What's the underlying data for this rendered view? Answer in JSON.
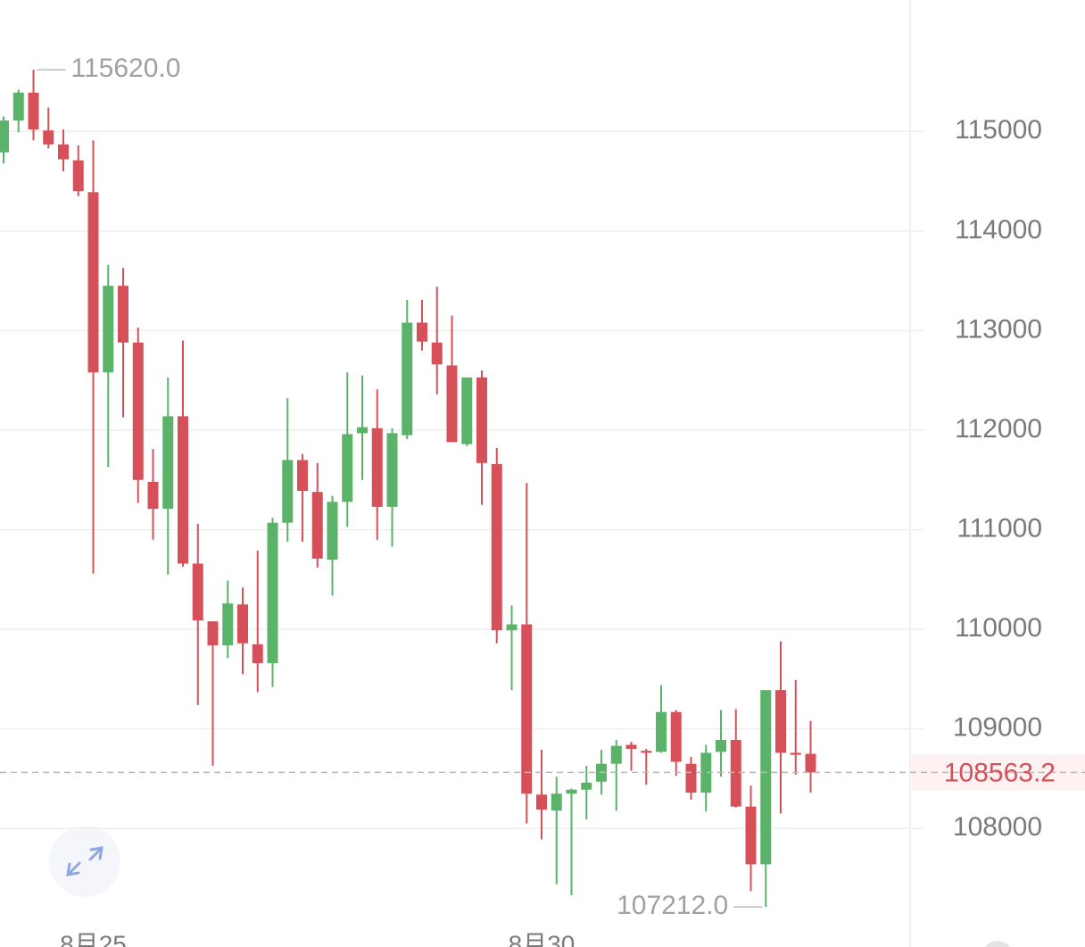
{
  "chart_data": {
    "type": "candlestick",
    "up_color": "#5bb36a",
    "down_color": "#d6505a",
    "categories": [
      null,
      null,
      null,
      null,
      null,
      null,
      "8月25",
      null,
      null,
      null,
      null,
      null,
      null,
      null,
      null,
      null,
      null,
      null,
      null,
      null,
      null,
      null,
      null,
      null,
      null,
      null,
      null,
      null,
      null,
      null,
      null,
      null,
      null,
      null,
      null,
      null,
      "8月30",
      null,
      null,
      null,
      null,
      null,
      null,
      null,
      null,
      null,
      null,
      null,
      null,
      null,
      null,
      null,
      null,
      null,
      null
    ],
    "open": [
      114790,
      115110,
      115390,
      115010,
      114870,
      114710,
      114390,
      112580,
      113450,
      112880,
      111480,
      111210,
      112140,
      110660,
      110080,
      109840,
      110250,
      109850,
      109660,
      111070,
      111700,
      111380,
      110700,
      111280,
      111970,
      112020,
      111230,
      111950,
      113080,
      112880,
      112650,
      111860,
      112530,
      111660,
      109990,
      110050,
      108340,
      108180,
      108350,
      108390,
      108470,
      108650,
      108840,
      108780,
      108770,
      109170,
      108650,
      108360,
      108770,
      108890,
      108220,
      107640,
      109390,
      108760,
      108750
    ],
    "close": [
      115110,
      115390,
      115020,
      114870,
      114720,
      114400,
      112580,
      113450,
      112880,
      111500,
      111210,
      112140,
      110660,
      110090,
      109840,
      110260,
      109860,
      109660,
      111070,
      111700,
      111390,
      110710,
      111280,
      111960,
      112030,
      111230,
      111970,
      113080,
      112890,
      112660,
      111880,
      112530,
      111670,
      109990,
      110050,
      108350,
      108190,
      108350,
      108390,
      108460,
      108650,
      108830,
      108800,
      108760,
      109170,
      108670,
      108360,
      108760,
      108890,
      108220,
      107640,
      109390,
      108760,
      108740,
      108563.2
    ],
    "high": [
      115150,
      115420,
      115620,
      115240,
      115020,
      114860,
      114910,
      113660,
      113630,
      113030,
      111810,
      112530,
      112900,
      111060,
      110080,
      110490,
      110420,
      110790,
      111120,
      112320,
      111760,
      111670,
      111340,
      112580,
      112550,
      112410,
      112020,
      113310,
      113310,
      113440,
      113150,
      112530,
      112600,
      111820,
      110240,
      111470,
      108790,
      108520,
      108400,
      108630,
      108790,
      108890,
      108870,
      108800,
      109440,
      109190,
      108720,
      108840,
      109190,
      109200,
      108430,
      109390,
      109880,
      109490,
      109080
    ],
    "low": [
      114680,
      114990,
      114910,
      114830,
      114600,
      114350,
      110560,
      111630,
      112130,
      111270,
      110900,
      110550,
      110630,
      109240,
      108630,
      109710,
      109550,
      109370,
      109420,
      110880,
      110880,
      110620,
      110340,
      111030,
      111500,
      110900,
      110830,
      111910,
      112800,
      112360,
      111880,
      111840,
      111250,
      109860,
      109390,
      108050,
      107890,
      107440,
      107330,
      108090,
      108340,
      108180,
      108580,
      108440,
      108760,
      108530,
      108290,
      108170,
      108520,
      108210,
      107370,
      107212,
      108150,
      108540,
      108360
    ],
    "ylim": [
      106810,
      116320
    ],
    "yticks": [
      108000,
      109000,
      110000,
      111000,
      112000,
      113000,
      114000,
      115000
    ],
    "grid": true,
    "max_label": {
      "value": 115620,
      "label": "115620.0"
    },
    "min_label": {
      "value": 107212,
      "label": "107212.0"
    },
    "last_price": 108563.2
  }
}
